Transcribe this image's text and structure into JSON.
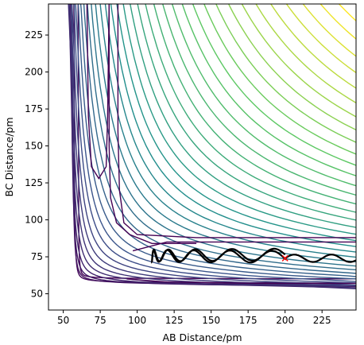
{
  "chart_data": {
    "type": "contour",
    "xlabel": "AB Distance/pm",
    "ylabel": "BC Distance/pm",
    "xlim": [
      40,
      248
    ],
    "ylim": [
      39,
      246
    ],
    "xticks": [
      "50",
      "75",
      "100",
      "125",
      "150",
      "175",
      "200",
      "225"
    ],
    "yticks": [
      "50",
      "75",
      "100",
      "125",
      "150",
      "175",
      "200",
      "225"
    ],
    "grid": false,
    "colormap": [
      "#440154",
      "#3b528b",
      "#21918c",
      "#5ec962",
      "#fde725"
    ],
    "contours": {
      "count": 40,
      "reactant_valley_x": 74,
      "product_valley_y": 74,
      "saddle": [
        77,
        88
      ]
    },
    "marker": {
      "symbol": "x",
      "color": "#ff0000",
      "x": 200,
      "y": 74
    },
    "trajectory": {
      "color": "#000000",
      "start": [
        200,
        74
      ],
      "x_range": [
        110,
        248
      ],
      "y_range": [
        70,
        82
      ]
    }
  }
}
